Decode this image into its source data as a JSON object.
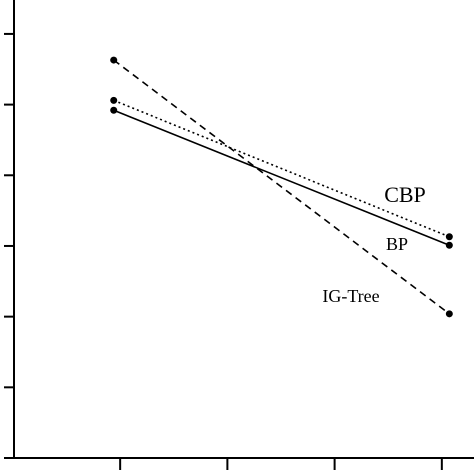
{
  "chart_data": {
    "type": "line",
    "x": [
      0.94,
      4.07
    ],
    "series": [
      {
        "name": "CBP",
        "color": "#000000",
        "dash": "dotted",
        "values": [
          5.06,
          3.13
        ]
      },
      {
        "name": "BP",
        "color": "#000000",
        "dash": "solid",
        "values": [
          4.92,
          3.01
        ]
      },
      {
        "name": "IG-Tree",
        "color": "#000000",
        "dash": "dashed",
        "values": [
          5.63,
          2.04
        ]
      }
    ],
    "xlim": [
      0.01,
      4.3
    ],
    "xticks": [
      1,
      2,
      3,
      4
    ],
    "ylim": [
      0,
      6.48
    ],
    "yticks": [
      0,
      1,
      2,
      3,
      4,
      5,
      6
    ],
    "grid": false
  }
}
